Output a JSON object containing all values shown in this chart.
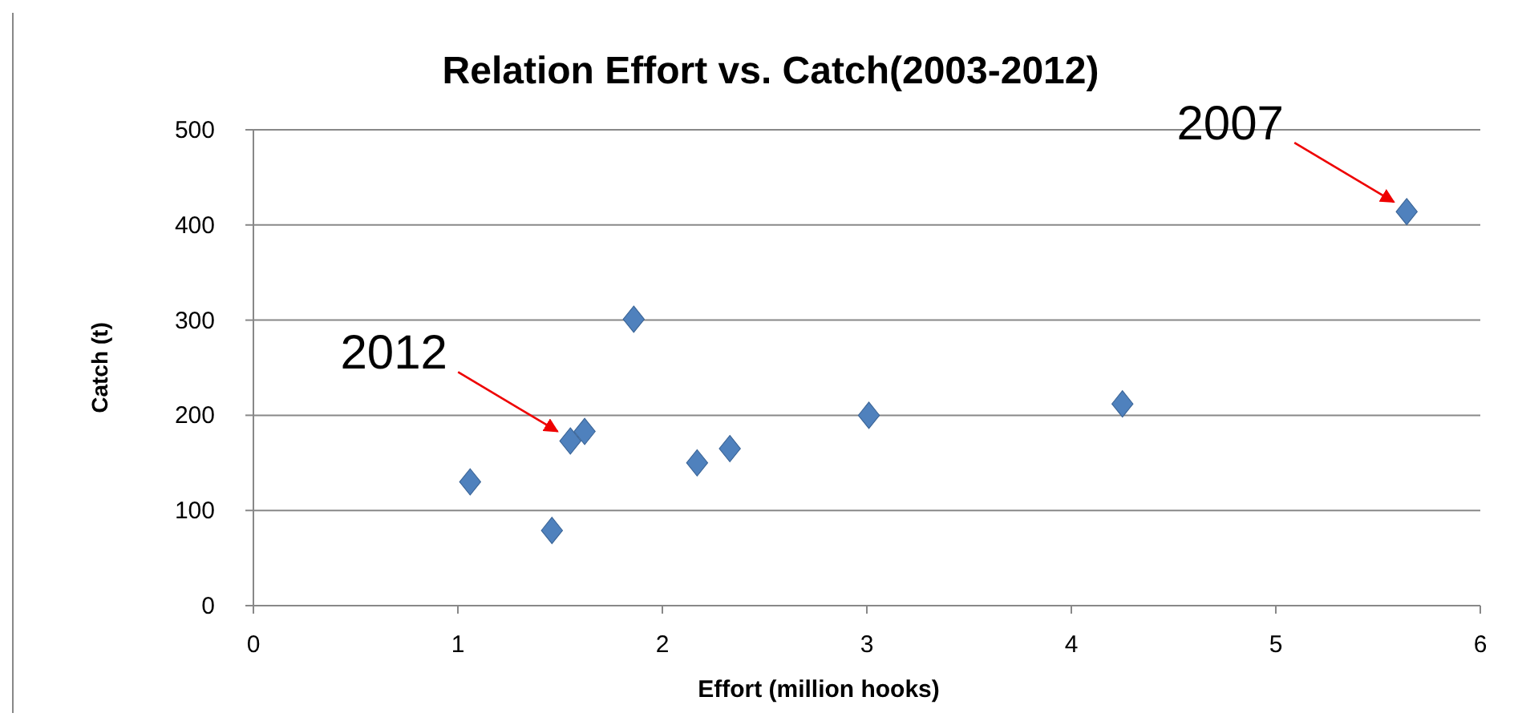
{
  "chart_data": {
    "type": "scatter",
    "title": "Relation Effort vs. Catch(2003-2012)",
    "xlabel": "Effort (million hooks)",
    "ylabel": "Catch (t)",
    "x": [
      1.06,
      1.46,
      1.55,
      1.62,
      1.86,
      2.17,
      2.33,
      3.01,
      4.25,
      5.64
    ],
    "values": [
      130,
      79,
      173,
      183,
      301,
      150,
      165,
      200,
      212,
      414
    ],
    "color": "#4f81bd",
    "marker": "diamond",
    "xlim": [
      0,
      6
    ],
    "xticks": [
      0,
      1,
      2,
      3,
      4,
      5,
      6
    ],
    "ylim": [
      0,
      500
    ],
    "yticks": [
      0,
      100,
      200,
      300,
      400,
      500
    ],
    "grid": "y",
    "annotations": [
      {
        "text": "2007",
        "x": 5.64,
        "y": 414
      },
      {
        "text": "2012",
        "x": 1.55,
        "y": 173
      }
    ]
  }
}
